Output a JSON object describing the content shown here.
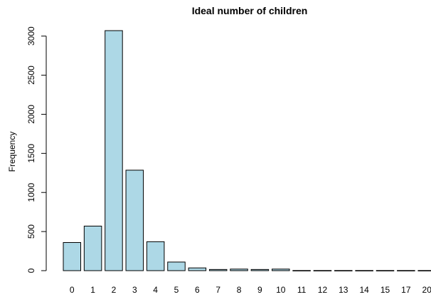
{
  "chart_data": {
    "type": "bar",
    "title": "Ideal number of children",
    "xlabel": "",
    "ylabel": "Frequency",
    "categories": [
      "0",
      "1",
      "2",
      "3",
      "4",
      "5",
      "6",
      "7",
      "8",
      "9",
      "10",
      "11",
      "12",
      "13",
      "14",
      "15",
      "17",
      "20"
    ],
    "values": [
      360,
      570,
      3070,
      1285,
      370,
      110,
      35,
      15,
      20,
      15,
      20,
      2,
      2,
      2,
      2,
      2,
      2,
      2
    ],
    "yticks": [
      0,
      500,
      1000,
      1500,
      2000,
      2500,
      3000
    ],
    "ylim": [
      0,
      3070
    ],
    "bar_color": "#add8e6",
    "grid": false,
    "legend": "none"
  }
}
